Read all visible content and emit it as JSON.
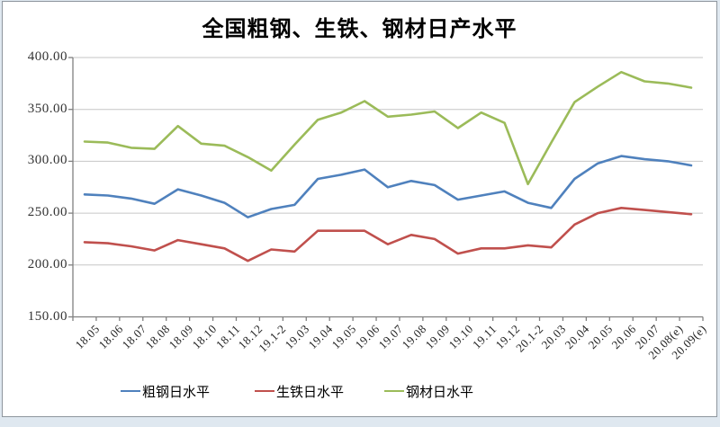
{
  "chart_data": {
    "type": "line",
    "title": "全国粗钢、生铁、钢材日产水平",
    "categories": [
      "18.05",
      "18.06",
      "18.07",
      "18.08",
      "18.09",
      "18.10",
      "18.11",
      "18.12",
      "19.1-2",
      "19.03",
      "19.04",
      "19.05",
      "19.06",
      "19.07",
      "19.08",
      "19.09",
      "19.10",
      "19.11",
      "19.12",
      "20.1-2",
      "20.03",
      "20.04",
      "20.05",
      "20.06",
      "20.07",
      "20.08(e)",
      "20.09(e)"
    ],
    "series": [
      {
        "id": "crude-steel",
        "name": "粗钢日水平",
        "color": "#4F81BD",
        "values": [
          268,
          267,
          264,
          259,
          273,
          267,
          260,
          246,
          254,
          258,
          283,
          287,
          292,
          275,
          281,
          277,
          263,
          267,
          271,
          260,
          255,
          283,
          298,
          305,
          302,
          300,
          296
        ]
      },
      {
        "id": "pig-iron",
        "name": "生铁日水平",
        "color": "#C0504D",
        "values": [
          222,
          221,
          218,
          214,
          224,
          220,
          216,
          204,
          215,
          213,
          233,
          233,
          233,
          220,
          229,
          225,
          211,
          216,
          216,
          219,
          217,
          239,
          250,
          255,
          253,
          251,
          249
        ]
      },
      {
        "id": "steel-products",
        "name": "钢材日水平",
        "color": "#9BBB59",
        "values": [
          319,
          318,
          313,
          312,
          334,
          317,
          315,
          304,
          291,
          316,
          340,
          347,
          358,
          343,
          345,
          348,
          332,
          347,
          337,
          278,
          318,
          357,
          372,
          386,
          377,
          375,
          371
        ]
      }
    ],
    "y_axis": {
      "min": 150,
      "max": 400,
      "step": 50,
      "tick_labels": [
        "400.00",
        "350.00",
        "300.00",
        "250.00",
        "200.00",
        "150.00"
      ]
    },
    "x_axis": {
      "label_rotation_deg": -45
    },
    "grid": true,
    "legend_position": "bottom",
    "colors": {
      "gridline": "#C6C6C6",
      "axis": "#808080",
      "frame_border": "#8e969e",
      "background": "#FFFFFF"
    }
  }
}
